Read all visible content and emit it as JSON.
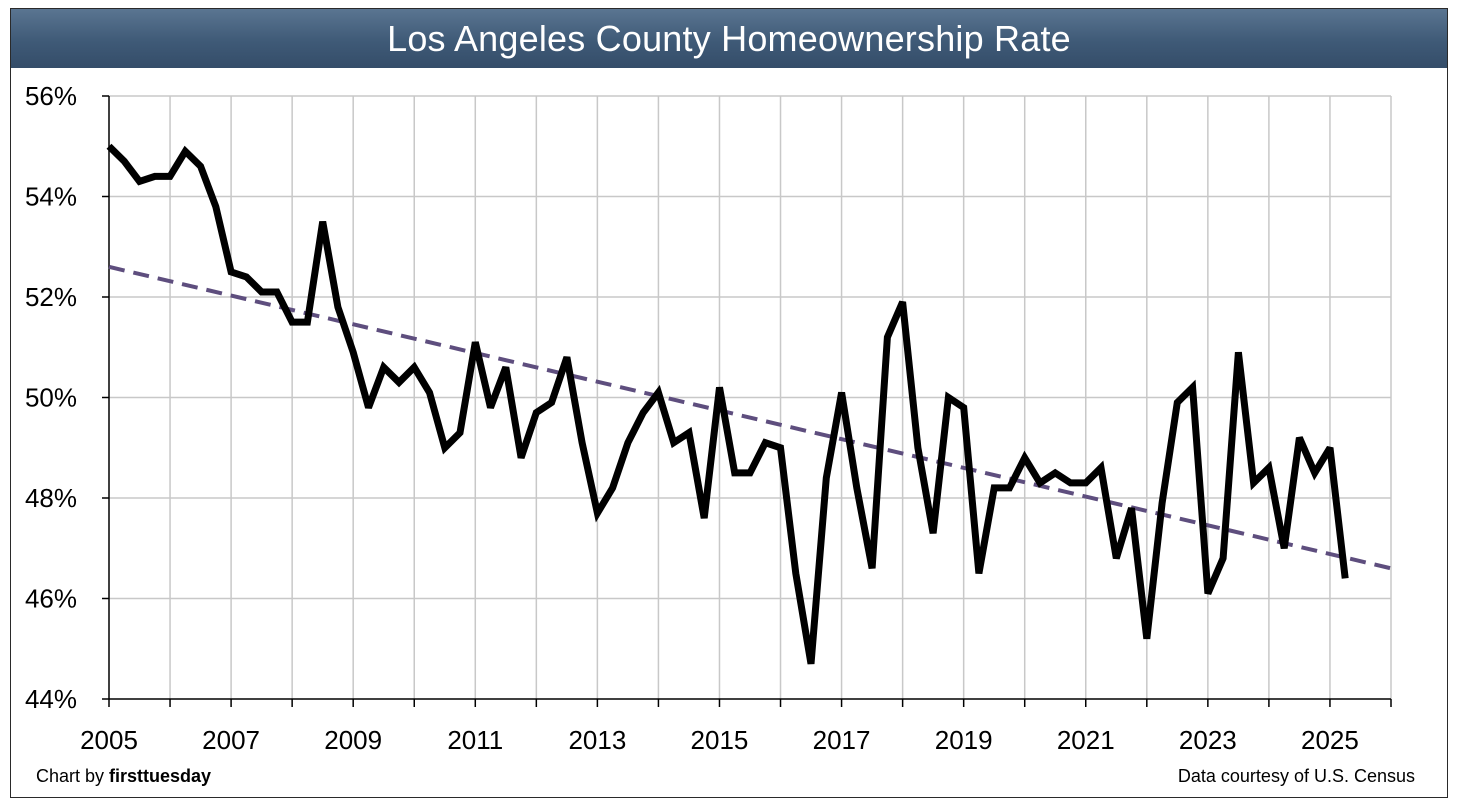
{
  "chart_data": {
    "type": "line",
    "title": "Los Angeles County Homeownership Rate",
    "xlabel": "",
    "ylabel": "",
    "xlim": [
      2005,
      2026
    ],
    "ylim": [
      44,
      56
    ],
    "y_ticks": [
      {
        "value": 44,
        "label": "44%"
      },
      {
        "value": 46,
        "label": "46%"
      },
      {
        "value": 48,
        "label": "48%"
      },
      {
        "value": 50,
        "label": "50%"
      },
      {
        "value": 52,
        "label": "52%"
      },
      {
        "value": 54,
        "label": "54%"
      },
      {
        "value": 56,
        "label": "56%"
      }
    ],
    "x_ticks": [
      {
        "value": 2005,
        "label": "2005"
      },
      {
        "value": 2007,
        "label": "2007"
      },
      {
        "value": 2009,
        "label": "2009"
      },
      {
        "value": 2011,
        "label": "2011"
      },
      {
        "value": 2013,
        "label": "2013"
      },
      {
        "value": 2015,
        "label": "2015"
      },
      {
        "value": 2017,
        "label": "2017"
      },
      {
        "value": 2019,
        "label": "2019"
      },
      {
        "value": 2021,
        "label": "2021"
      },
      {
        "value": 2023,
        "label": "2023"
      },
      {
        "value": 2025,
        "label": "2025"
      }
    ],
    "grid": true,
    "series": [
      {
        "name": "Homeownership rate",
        "color": "#000000",
        "x": [
          2005.0,
          2005.25,
          2005.5,
          2005.75,
          2006.0,
          2006.25,
          2006.5,
          2006.75,
          2007.0,
          2007.25,
          2007.5,
          2007.75,
          2008.0,
          2008.25,
          2008.5,
          2008.75,
          2009.0,
          2009.25,
          2009.5,
          2009.75,
          2010.0,
          2010.25,
          2010.5,
          2010.75,
          2011.0,
          2011.25,
          2011.5,
          2011.75,
          2012.0,
          2012.25,
          2012.5,
          2012.75,
          2013.0,
          2013.25,
          2013.5,
          2013.75,
          2014.0,
          2014.25,
          2014.5,
          2014.75,
          2015.0,
          2015.25,
          2015.5,
          2015.75,
          2016.0,
          2016.25,
          2016.5,
          2016.75,
          2017.0,
          2017.25,
          2017.5,
          2017.75,
          2018.0,
          2018.25,
          2018.5,
          2018.75,
          2019.0,
          2019.25,
          2019.5,
          2019.75,
          2020.0,
          2020.25,
          2020.5,
          2020.75,
          2021.0,
          2021.25,
          2021.5,
          2021.75,
          2022.0,
          2022.25,
          2022.5,
          2022.75,
          2023.0,
          2023.25,
          2023.5,
          2023.75,
          2024.0,
          2024.25,
          2024.5,
          2024.75,
          2025.0,
          2025.25
        ],
        "values": [
          55.0,
          54.7,
          54.3,
          54.4,
          54.4,
          54.9,
          54.6,
          53.8,
          52.5,
          52.4,
          52.1,
          52.1,
          51.5,
          51.5,
          53.5,
          51.8,
          50.9,
          49.8,
          50.6,
          50.3,
          50.6,
          50.1,
          49.0,
          49.3,
          51.1,
          49.8,
          50.6,
          48.8,
          49.7,
          49.9,
          50.8,
          49.1,
          47.7,
          48.2,
          49.1,
          49.7,
          50.1,
          49.1,
          49.3,
          47.6,
          50.2,
          48.5,
          48.5,
          49.1,
          49.0,
          46.5,
          44.7,
          48.4,
          50.1,
          48.2,
          46.6,
          51.2,
          51.9,
          49.0,
          47.3,
          50.0,
          49.8,
          46.5,
          48.2,
          48.2,
          48.8,
          48.3,
          48.5,
          48.3,
          48.3,
          48.6,
          46.8,
          47.8,
          45.2,
          47.9,
          49.9,
          50.2,
          46.1,
          46.8,
          50.9,
          48.3,
          48.6,
          47.0,
          49.2,
          48.5,
          49.0,
          46.4
        ]
      },
      {
        "name": "Trend",
        "color": "#5e4e7e",
        "style": "dashed",
        "x": [
          2005.0,
          2026.0
        ],
        "values": [
          52.6,
          46.6
        ]
      }
    ]
  },
  "credits": {
    "left_prefix": "Chart by ",
    "left_brand": "firsttuesday",
    "right": "Data courtesy of U.S. Census"
  }
}
